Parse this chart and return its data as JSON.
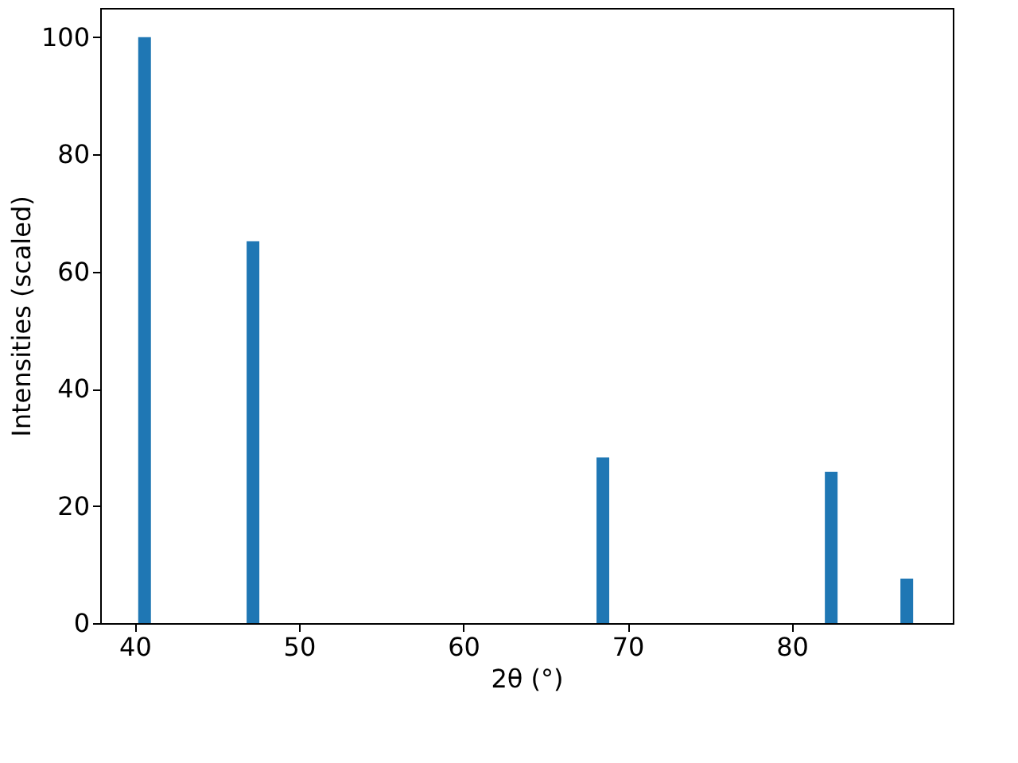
{
  "chart_data": {
    "type": "bar",
    "xlabel": "2θ (°)",
    "ylabel": "Intensities (scaled)",
    "x": [
      40.6,
      47.2,
      68.5,
      82.4,
      87.0
    ],
    "series": [
      {
        "color": "#1f77b4",
        "values": [
          100,
          65.2,
          28.3,
          25.8,
          7.6
        ]
      }
    ],
    "xlim": [
      37.9,
      89.8
    ],
    "xticks": [
      40,
      50,
      60,
      70,
      80
    ],
    "ylim": [
      0,
      105
    ],
    "yticks": [
      0,
      20,
      40,
      60,
      80,
      100
    ],
    "grid": false,
    "legend": false
  }
}
